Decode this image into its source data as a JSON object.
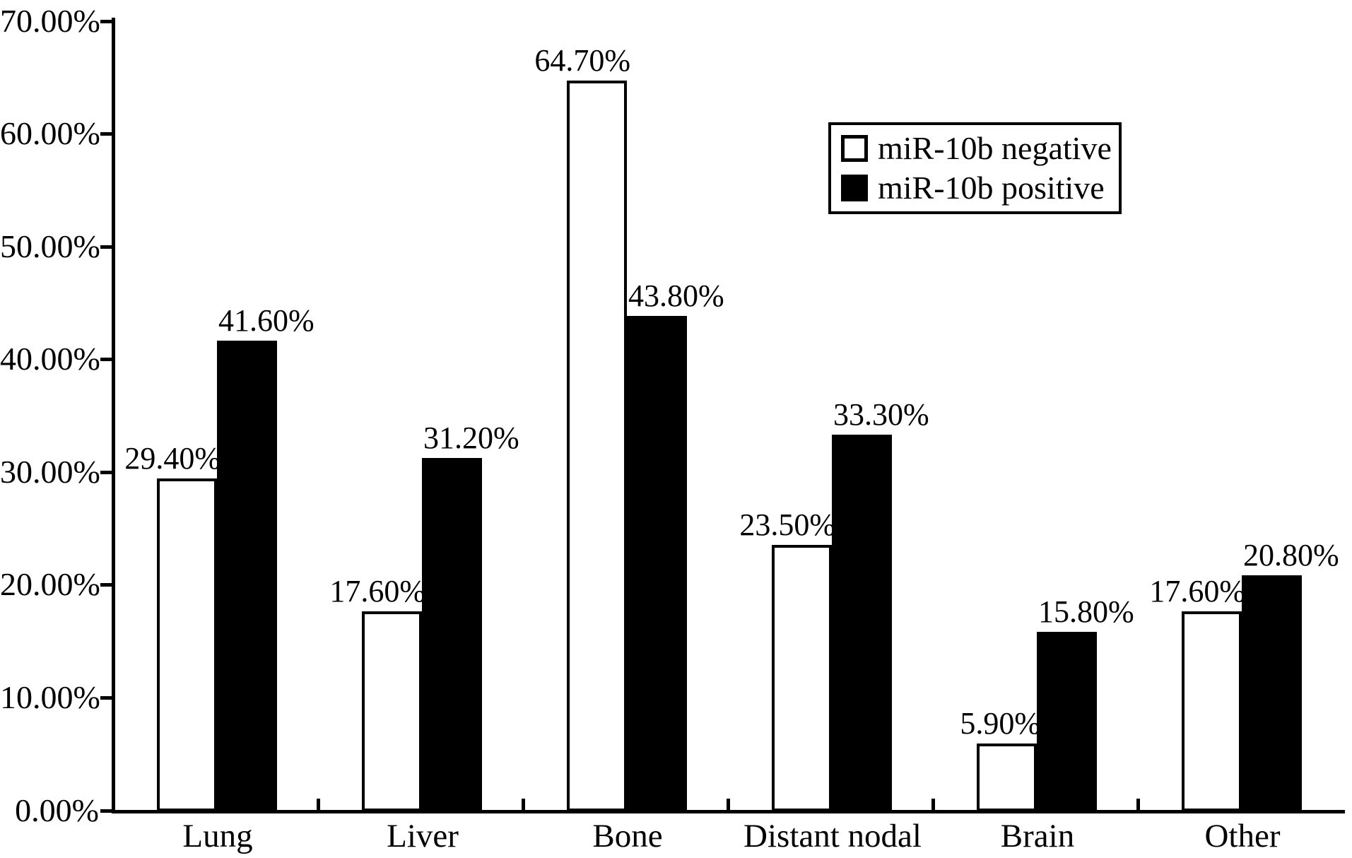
{
  "chart_data": {
    "type": "bar",
    "title": "",
    "xlabel": "",
    "ylabel": "",
    "categories": [
      "Lung",
      "Liver",
      "Bone",
      "Distant nodal",
      "Brain",
      "Other"
    ],
    "series": [
      {
        "name": "miR-10b negative",
        "color": "#ffffff",
        "values": [
          29.4,
          17.6,
          64.7,
          23.5,
          5.9,
          17.6
        ],
        "data_labels": [
          "29.40%",
          "17.60%",
          "64.70%",
          "23.50%",
          "5.90%",
          "17.60%"
        ]
      },
      {
        "name": "miR-10b positive",
        "color": "#000000",
        "values": [
          41.6,
          31.2,
          43.8,
          33.3,
          15.8,
          20.8
        ],
        "data_labels": [
          "41.60%",
          "31.20%",
          "43.80%",
          "33.30%",
          "15.80%",
          "20.80%"
        ]
      }
    ],
    "ylim": [
      0,
      70
    ],
    "ytick_step": 10,
    "ytick_labels": [
      "0.00%",
      "10.00%",
      "20.00%",
      "30.00%",
      "40.00%",
      "50.00%",
      "60.00%",
      "70.00%"
    ],
    "grid": false,
    "legend_position": "top-right",
    "axis_color": "#000000",
    "background_color": "#ffffff"
  }
}
